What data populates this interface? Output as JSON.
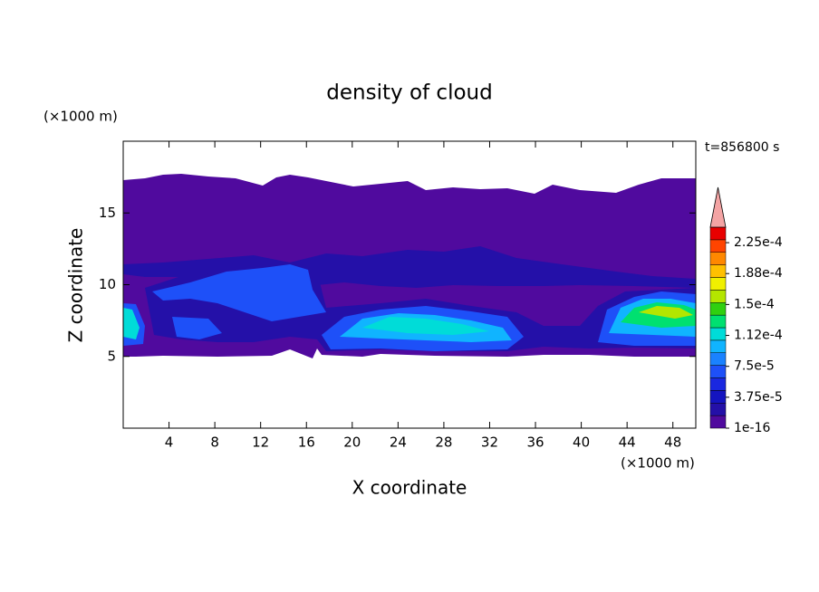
{
  "chart_data": {
    "type": "contour",
    "title": "density of cloud",
    "x_label": "X coordinate",
    "y_label": "Z coordinate",
    "x_unit": "(×1000 m)",
    "y_unit": "(×1000 m)",
    "annotation": "t=856800 s",
    "xlim": [
      0,
      50
    ],
    "xticks": [
      4,
      8,
      12,
      16,
      20,
      24,
      28,
      32,
      36,
      40,
      44,
      48
    ],
    "ylim": [
      0,
      20
    ],
    "yticks": [
      5,
      10,
      15
    ],
    "colorbar": {
      "clim": [
        1e-16,
        0.00024375
      ],
      "colors": [
        "#500a9e",
        "#2410a8",
        "#1414c0",
        "#1a28e0",
        "#1e50f8",
        "#1a82ff",
        "#10b4ff",
        "#00dcd8",
        "#00e070",
        "#30d010",
        "#b4e600",
        "#f0f000",
        "#ffc000",
        "#ff8800",
        "#ff4400",
        "#e80000"
      ],
      "extend_color": "#f4a4a4",
      "ticks": [
        {
          "value": 1e-16,
          "label": "1e-16"
        },
        {
          "value": 3.75e-05,
          "label": "3.75e-5"
        },
        {
          "value": 7.5e-05,
          "label": "7.5e-5"
        },
        {
          "value": 0.0001125,
          "label": "1.12e-4"
        },
        {
          "value": 0.00015,
          "label": "1.5e-4"
        },
        {
          "value": 0.0001875,
          "label": "1.88e-4"
        },
        {
          "value": 0.000225,
          "label": "2.25e-4"
        }
      ]
    }
  }
}
